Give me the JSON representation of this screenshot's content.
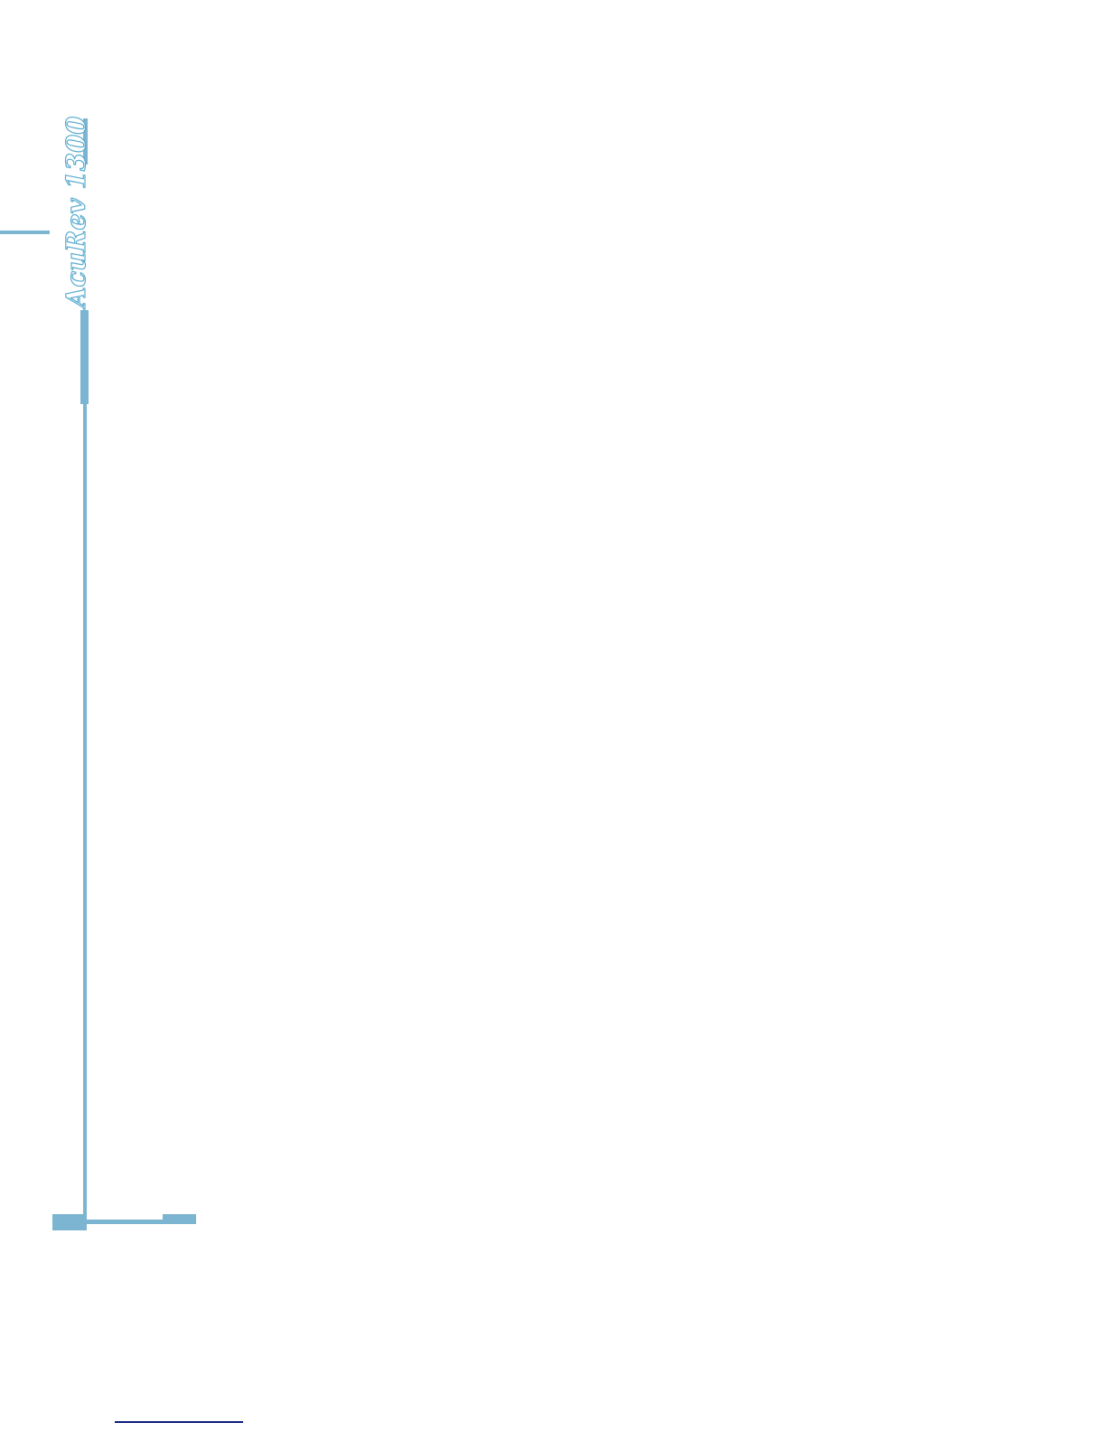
{
  "document": {
    "title_vertical": "AcuRev 1300",
    "theme": {
      "accent_blue": "#7cb5d2",
      "title_outline_blue": "#58abce",
      "footer_rule_navy": "#0d1b7e",
      "background": "#ffffff"
    }
  }
}
